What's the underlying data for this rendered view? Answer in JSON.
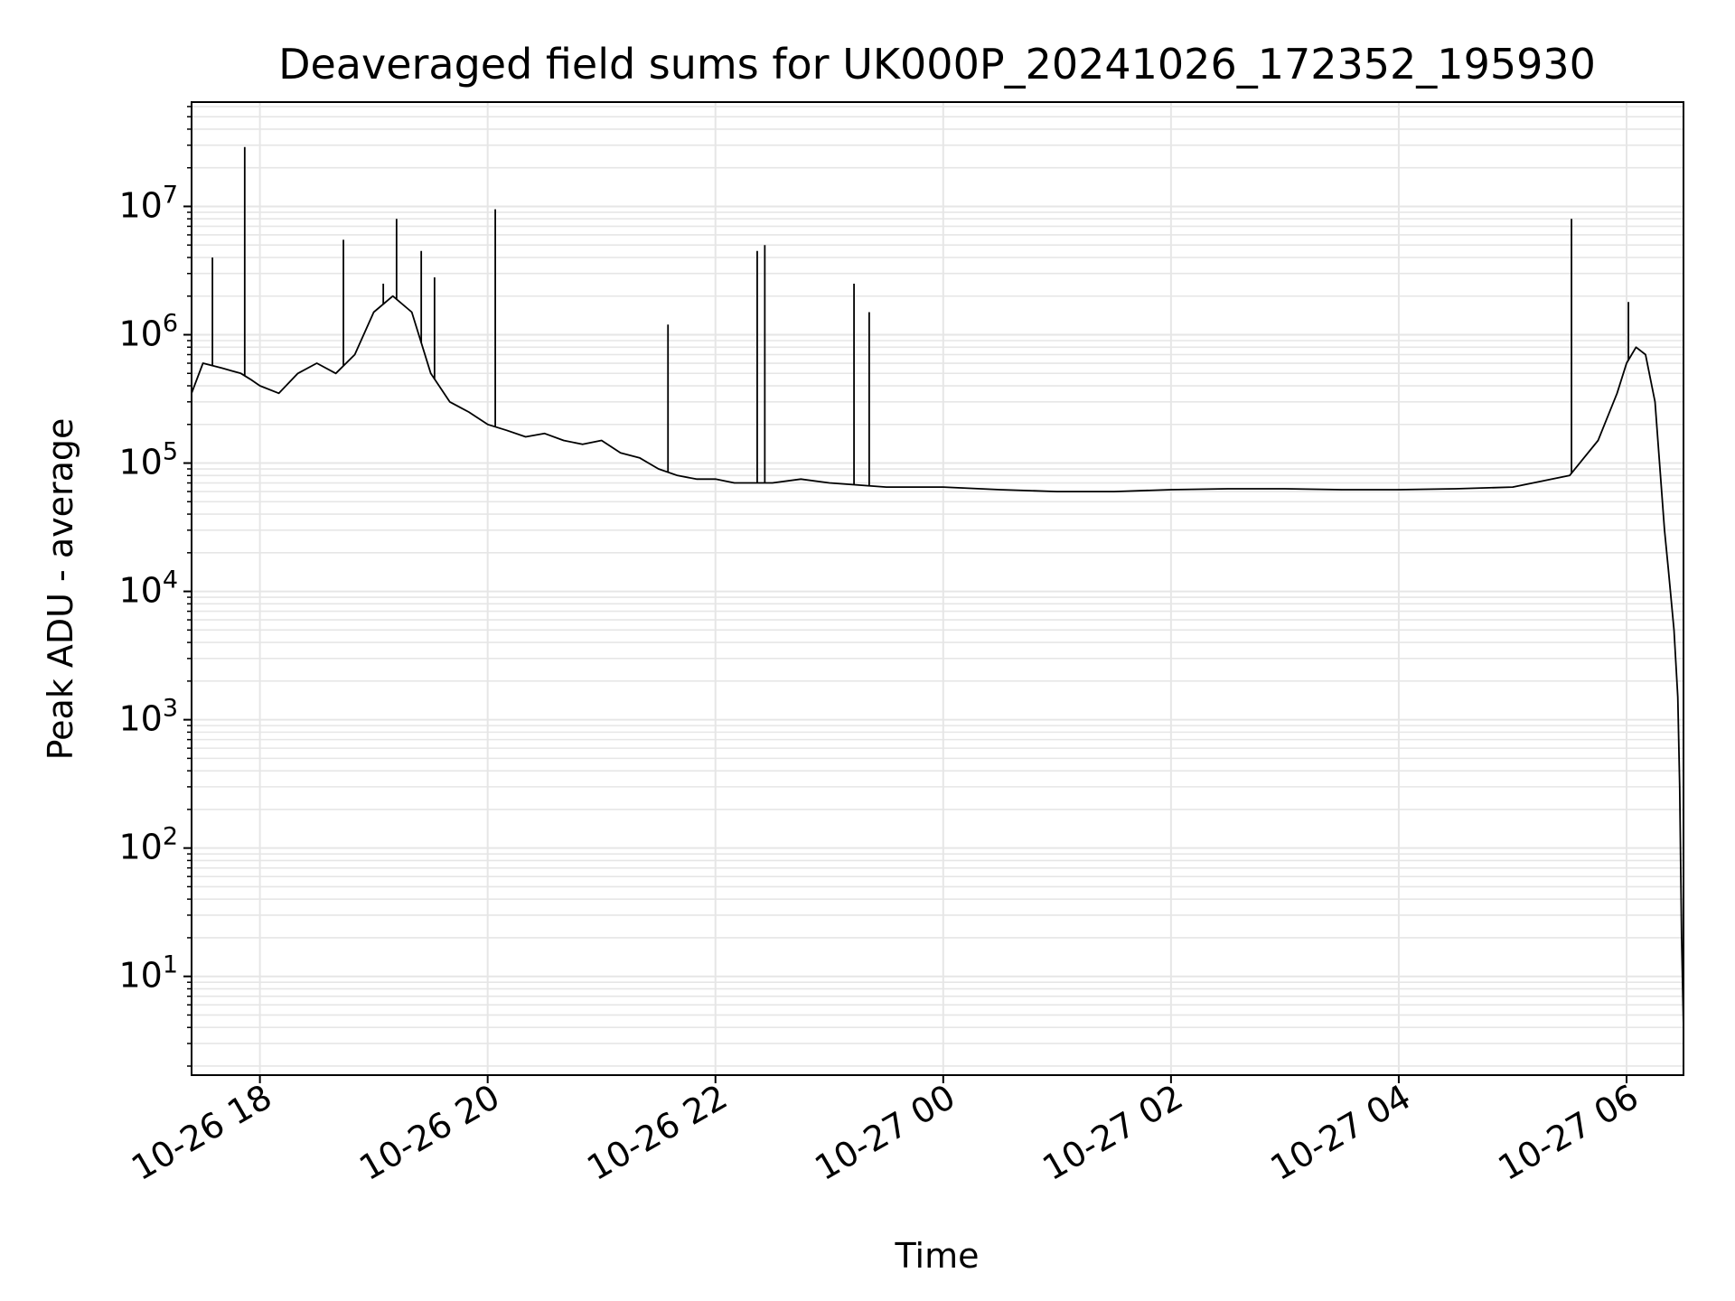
{
  "chart_data": {
    "type": "line",
    "title": "Deaveraged field sums for UK000P_20241026_172352_195930",
    "xlabel": "Time",
    "ylabel": "Peak ADU - average",
    "yscale": "log",
    "grid": true,
    "xlim": [
      "2024-10-26 17:24",
      "2024-10-27 06:30"
    ],
    "ylim": [
      1.7,
      65000000.0
    ],
    "x_ticks": [
      {
        "value": "2024-10-26 18:00",
        "label": "10-26 18"
      },
      {
        "value": "2024-10-26 20:00",
        "label": "10-26 20"
      },
      {
        "value": "2024-10-26 22:00",
        "label": "10-26 22"
      },
      {
        "value": "2024-10-27 00:00",
        "label": "10-27 00"
      },
      {
        "value": "2024-10-27 02:00",
        "label": "10-27 02"
      },
      {
        "value": "2024-10-27 04:00",
        "label": "10-27 04"
      },
      {
        "value": "2024-10-27 06:00",
        "label": "10-27 06"
      }
    ],
    "y_ticks": [
      {
        "value": 10,
        "base": "10",
        "exp": "1"
      },
      {
        "value": 100,
        "base": "10",
        "exp": "2"
      },
      {
        "value": 1000,
        "base": "10",
        "exp": "3"
      },
      {
        "value": 10000,
        "base": "10",
        "exp": "4"
      },
      {
        "value": 100000,
        "base": "10",
        "exp": "5"
      },
      {
        "value": 1000000,
        "base": "10",
        "exp": "6"
      },
      {
        "value": 10000000,
        "base": "10",
        "exp": "7"
      }
    ],
    "series": [
      {
        "color": "#000000",
        "x": [
          "2024-10-26 17:24",
          "2024-10-26 17:30",
          "2024-10-26 17:40",
          "2024-10-26 17:50",
          "2024-10-26 17:55",
          "2024-10-26 18:00",
          "2024-10-26 18:10",
          "2024-10-26 18:20",
          "2024-10-26 18:30",
          "2024-10-26 18:40",
          "2024-10-26 18:50",
          "2024-10-26 19:00",
          "2024-10-26 19:10",
          "2024-10-26 19:20",
          "2024-10-26 19:30",
          "2024-10-26 19:40",
          "2024-10-26 19:50",
          "2024-10-26 20:00",
          "2024-10-26 20:10",
          "2024-10-26 20:20",
          "2024-10-26 20:30",
          "2024-10-26 20:40",
          "2024-10-26 20:50",
          "2024-10-26 21:00",
          "2024-10-26 21:10",
          "2024-10-26 21:20",
          "2024-10-26 21:30",
          "2024-10-26 21:40",
          "2024-10-26 21:50",
          "2024-10-26 22:00",
          "2024-10-26 22:10",
          "2024-10-26 22:20",
          "2024-10-26 22:30",
          "2024-10-26 22:45",
          "2024-10-26 23:00",
          "2024-10-26 23:30",
          "2024-10-27 00:00",
          "2024-10-27 00:30",
          "2024-10-27 01:00",
          "2024-10-27 01:30",
          "2024-10-27 02:00",
          "2024-10-27 02:30",
          "2024-10-27 03:00",
          "2024-10-27 03:30",
          "2024-10-27 04:00",
          "2024-10-27 04:30",
          "2024-10-27 05:00",
          "2024-10-27 05:30",
          "2024-10-27 05:45",
          "2024-10-27 05:55",
          "2024-10-27 06:00",
          "2024-10-27 06:05",
          "2024-10-27 06:10",
          "2024-10-27 06:15",
          "2024-10-27 06:20",
          "2024-10-27 06:22",
          "2024-10-27 06:25",
          "2024-10-27 06:27",
          "2024-10-27 06:28",
          "2024-10-27 06:29",
          "2024-10-27 06:30"
        ],
        "y": [
          350000,
          600000,
          550000,
          500000,
          450000,
          400000,
          350000,
          500000,
          600000,
          500000,
          700000,
          1500000,
          2000000,
          1500000,
          500000,
          300000,
          250000,
          200000,
          180000,
          160000,
          170000,
          150000,
          140000,
          150000,
          120000,
          110000,
          90000,
          80000,
          75000,
          75000,
          70000,
          70000,
          70000,
          75000,
          70000,
          65000,
          65000,
          62000,
          60000,
          60000,
          62000,
          63000,
          63000,
          62000,
          62000,
          63000,
          65000,
          80000,
          150000,
          350000,
          600000,
          800000,
          700000,
          300000,
          30000,
          15000,
          5000,
          1500,
          300,
          20,
          4
        ]
      }
    ],
    "spikes": [
      {
        "x": "2024-10-26 17:35",
        "y": 4000000
      },
      {
        "x": "2024-10-26 17:52",
        "y": 29000000
      },
      {
        "x": "2024-10-26 18:44",
        "y": 5500000
      },
      {
        "x": "2024-10-26 19:05",
        "y": 2500000
      },
      {
        "x": "2024-10-26 19:12",
        "y": 8000000
      },
      {
        "x": "2024-10-26 19:25",
        "y": 4500000
      },
      {
        "x": "2024-10-26 19:32",
        "y": 2800000
      },
      {
        "x": "2024-10-26 20:04",
        "y": 9500000
      },
      {
        "x": "2024-10-26 21:35",
        "y": 1200000
      },
      {
        "x": "2024-10-26 22:22",
        "y": 4500000
      },
      {
        "x": "2024-10-26 22:26",
        "y": 5000000
      },
      {
        "x": "2024-10-26 23:13",
        "y": 2500000
      },
      {
        "x": "2024-10-26 23:21",
        "y": 1500000
      },
      {
        "x": "2024-10-27 05:31",
        "y": 8000000
      },
      {
        "x": "2024-10-27 06:01",
        "y": 1800000
      }
    ]
  }
}
